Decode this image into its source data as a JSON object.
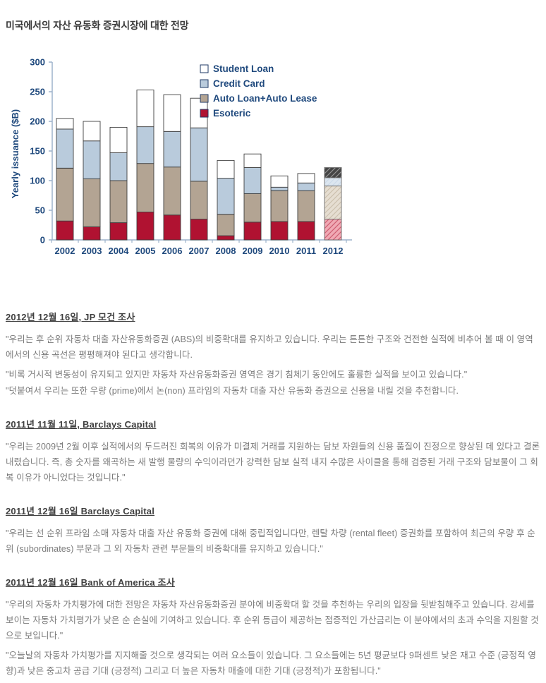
{
  "title": "미국에서의 자산 유동화 증권시장에 대한 전망",
  "chart_data": {
    "type": "bar",
    "stacked": true,
    "title": "",
    "xlabel": "",
    "ylabel": "Yearly issuance ($B)",
    "ylim": [
      0,
      300
    ],
    "ytick_step": 50,
    "grid": false,
    "legend_position": "upper-right-inside",
    "categories": [
      "2002",
      "2003",
      "2004",
      "2005",
      "2006",
      "2007",
      "2008",
      "2009",
      "2010",
      "2011",
      "2012"
    ],
    "forecast_index": 10,
    "forecast_note": "2012 bar drawn hatched (projection)",
    "style": {
      "axis_color": "#9DB3CC",
      "text_color": "#1F497D"
    },
    "series": [
      {
        "name": "Esoteric",
        "color": "#B01231",
        "forecast_fill": {
          "bg": "#F0A9B4",
          "line": "#CB586C"
        },
        "values": [
          32,
          22,
          29,
          47,
          42,
          35,
          7,
          30,
          31,
          31,
          35
        ]
      },
      {
        "name": "Auto Loan+Auto Lease",
        "color": "#B3A493",
        "forecast_fill": {
          "bg": "#E6DED2",
          "line": "#C9BDAA"
        },
        "values": [
          89,
          81,
          71,
          82,
          81,
          64,
          36,
          48,
          52,
          52,
          56
        ]
      },
      {
        "name": "Credit Card",
        "color": "#B9CBDC",
        "forecast_fill": {
          "bg": "#DCE6F0",
          "line": "#CBD9E8"
        },
        "values": [
          66,
          64,
          47,
          62,
          60,
          90,
          61,
          44,
          6,
          13,
          14
        ]
      },
      {
        "name": "Student Loan",
        "color": "#FFFFFF",
        "forecast_fill": {
          "bg": "#454545",
          "line": "#9B9B9B"
        },
        "values": [
          18,
          33,
          43,
          62,
          62,
          50,
          30,
          23,
          19,
          16,
          17
        ]
      }
    ],
    "totals": [
      205,
      200,
      190,
      253,
      245,
      239,
      134,
      145,
      108,
      112,
      122
    ]
  },
  "sections": [
    {
      "heading": "2012년 12월 16일, JP 모건 조사",
      "paragraphs": [
        "\"우리는 후 순위 자동차 대출 자산유동화증권 (ABS)의 비중확대를 유지하고 있습니다. 우리는 튼튼한 구조와 건전한 실적에 비추어 볼 때 이 영역에서의 신용 곡선은 평평해져야 된다고 생각합니다.",
        "\"비록 거시적 변동성이 유지되고 있지만 자동차 자산유동화증권 영역은 경기 침체기 동안에도 훌륭한 실적을 보이고 있습니다.\"",
        "\"덧붙여서 우리는 또한 우량 (prime)에서 논(non) 프라임의 자동차 대출 자산 유동화 증권으로 신용을 내릴 것을 추천합니다."
      ]
    },
    {
      "heading": "2011년 11월 11일, Barclays Capital",
      "paragraphs": [
        "\"우리는 2009년 2월 이후 실적에서의 두드러진 회복의 이유가 미결제 거래를 지원하는 담보 자원들의 신용 품질이 진정으로 향상된 데 있다고 결론 내렸습니다. 즉, 총 숫자를 왜곡하는 새 발행 물량의 수익이라던가 강력한 담보 실적 내지 수많은 사이클을 통해 검증된 거래 구조와 담보물이 그 회복 이유가 아니었다는 것입니다.\""
      ]
    },
    {
      "heading": "2011년 12월 16일 Barclays Capital",
      "paragraphs": [
        "\"우리는 선 순위 프라임 소매 자동차 대출 자산 유동화 증권에 대해 중립적입니다만, 렌탈 차량 (rental fleet) 증권화를 포함하여 최근의 우량 후 순위 (subordinates) 부문과 그 외 자동차 관련 부문들의 비중확대를 유지하고 있습니다.\""
      ]
    },
    {
      "heading": "2011년 12월 16일 Bank of America 조사",
      "paragraphs": [
        "\"우리의 자동차 가치평가에 대한 전망은 자동차 자산유동화증권 분야에 비중확대 할 것을 추천하는 우리의 입장을 뒷받침해주고 있습니다. 강세를 보이는 자동차 가치평가가 낮은 순 손실에 기여하고 있습니다. 후 순위 등급이 제공하는 점증적인 가산금리는 이 분야에서의 초과 수익을 지원할 것으로 보입니다.\"",
        "\"오늘날의 자동차 가치평가를 지지해줄 것으로 생각되는 여러 요소들이 있습니다. 그 요소들에는 5년 평균보다 9퍼센트 낮은 재고 수준 (긍정적 영향)과 낮은 중고차 공급 기대 (긍정적) 그리고 더 높은 자동차 매출에 대한 기대 (긍정적)가 포함됩니다.\""
      ]
    }
  ]
}
